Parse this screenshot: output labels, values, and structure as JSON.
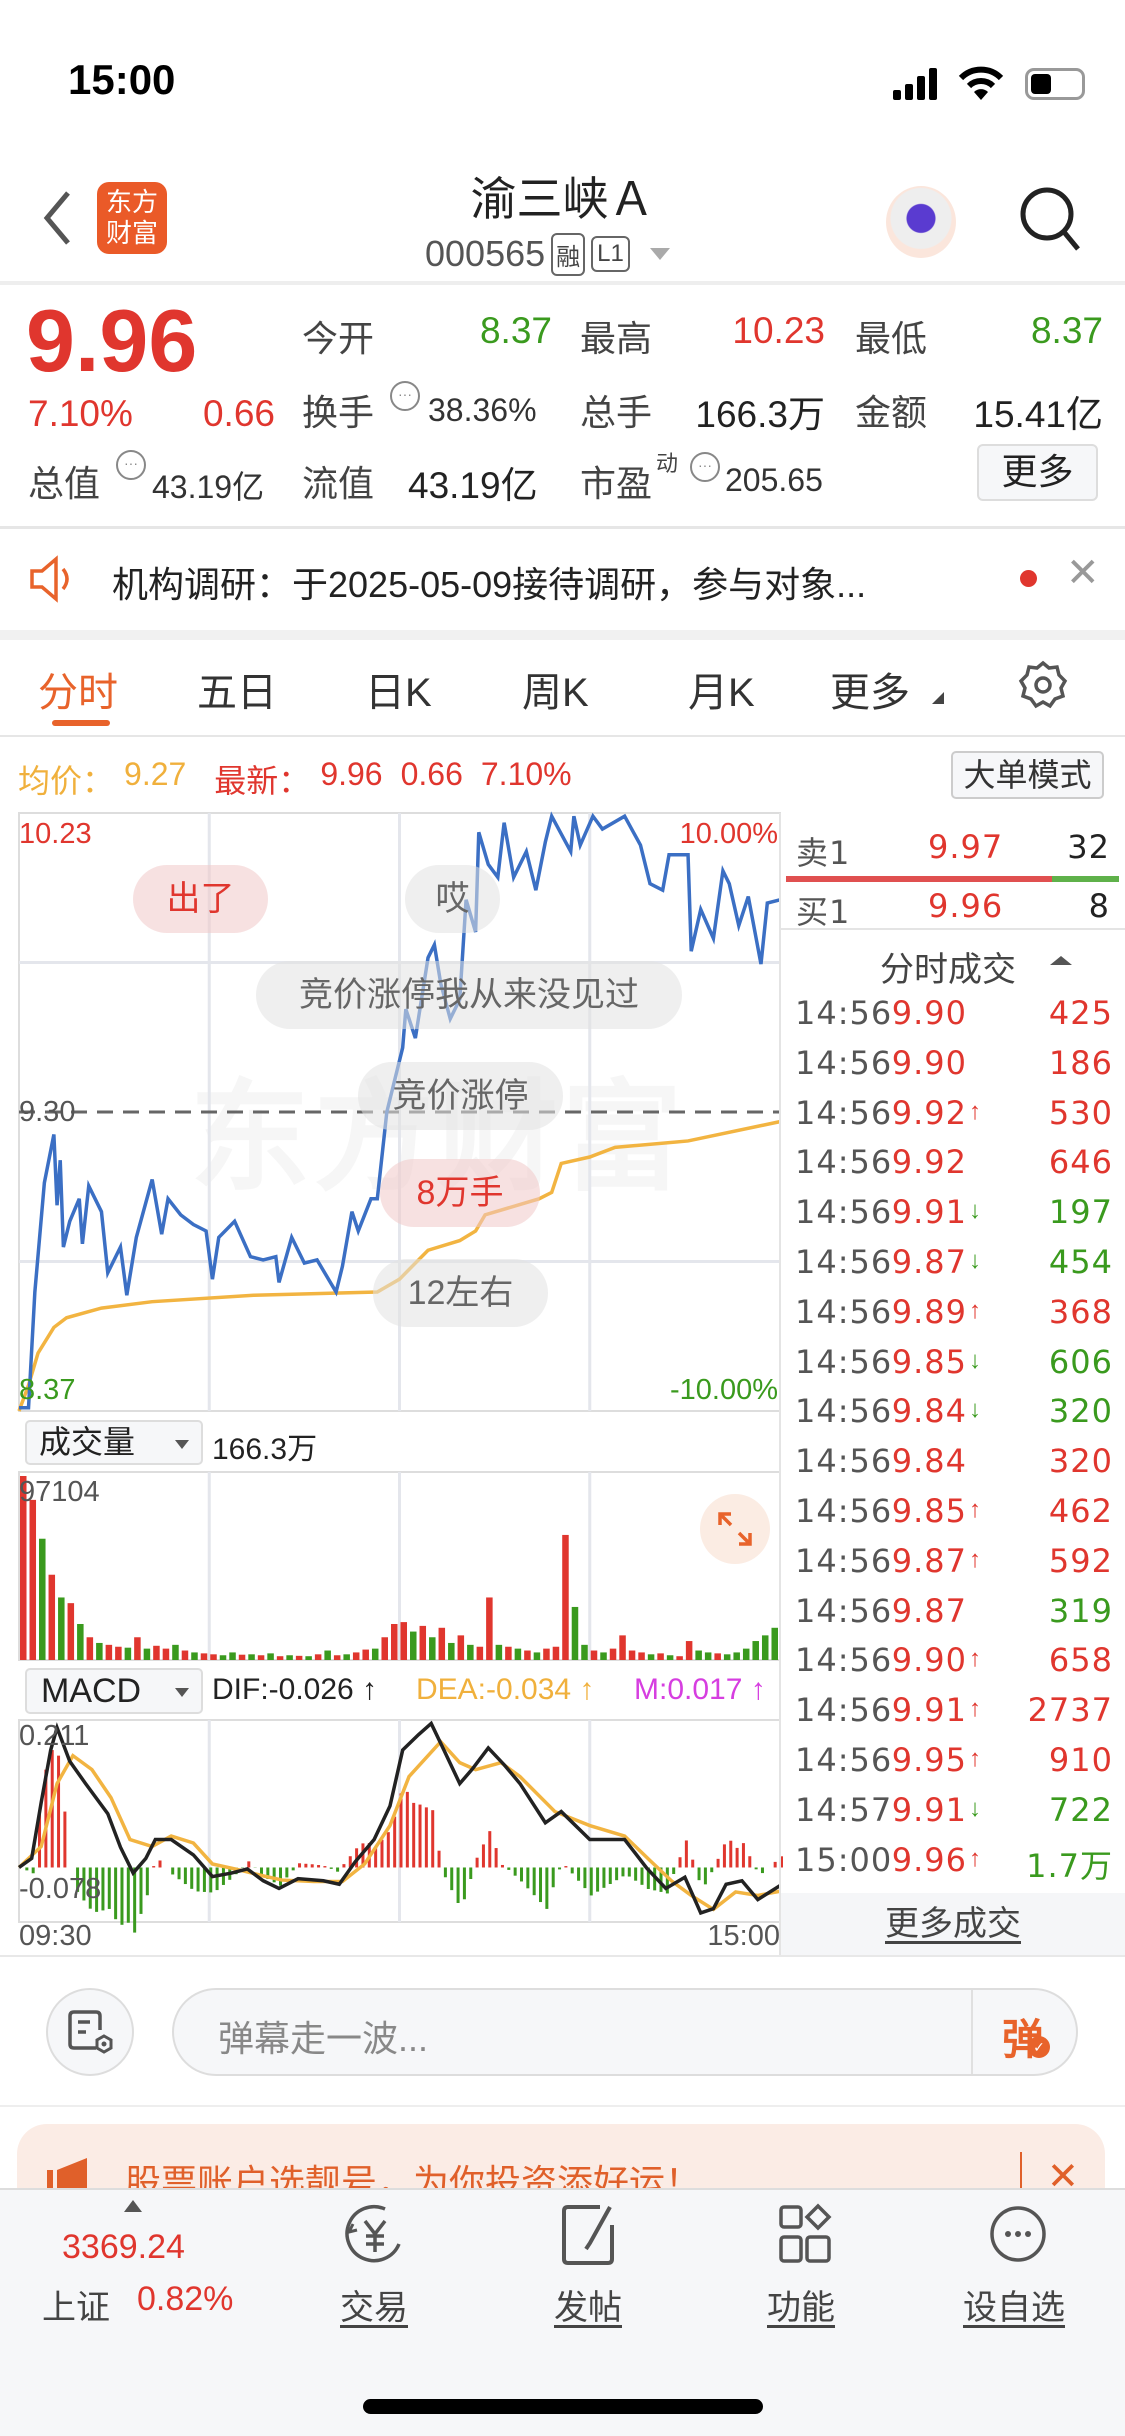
{
  "status_bar": {
    "time": "15:00"
  },
  "nav": {
    "logo_text": "东方财富",
    "title": "渝三峡Ａ",
    "code": "000565",
    "badges": [
      "融",
      "L1"
    ]
  },
  "quote": {
    "price": "9.96",
    "change_pct": "7.10%",
    "change": "0.66",
    "open_label": "今开",
    "open": "8.37",
    "high_label": "最高",
    "high": "10.23",
    "low_label": "最低",
    "low": "8.37",
    "turnover_label": "换手",
    "turnover": "38.36%",
    "volume_label": "总手",
    "volume": "166.3万",
    "amount_label": "金额",
    "amount": "15.41亿",
    "total_cap_label": "总值",
    "total_cap": "43.19亿",
    "float_cap_label": "流值",
    "float_cap": "43.19亿",
    "pe_label": "市盈",
    "pe_sup": "动",
    "pe": "205.65",
    "more_button": "更多",
    "colors": {
      "up": "#e0362e",
      "down": "#3a9a1e"
    }
  },
  "notice": {
    "text": "机构调研：于2025-05-09接待调研，参与对象..."
  },
  "tabs": {
    "items": [
      "分时",
      "五日",
      "日K",
      "周K",
      "月K",
      "更多"
    ],
    "active": 0
  },
  "chart_header": {
    "avg_label": "均价：",
    "avg": "9.27",
    "latest_label": "最新：",
    "latest": "9.96",
    "change": "0.66",
    "pct": "7.10%",
    "mode_button": "大单模式"
  },
  "main_chart": {
    "top_price": "10.23",
    "mid_price": "9.30",
    "bottom_price": "8.37",
    "top_pct": "10.00%",
    "bottom_pct": "-10.00%",
    "watermark": "东方财富"
  },
  "danmaku": [
    "出了",
    "哎",
    "竞价涨停我从来没见过",
    "竞价涨停",
    "8万手",
    "12左右"
  ],
  "volume_panel": {
    "selector": "成交量",
    "total": "166.3万",
    "max_label": "97104"
  },
  "macd_panel": {
    "selector": "MACD",
    "dif": "DIF:-0.026 ↑",
    "dea": "DEA:-0.034 ↑",
    "m": "M:0.017 ↑",
    "top_label": "0.211",
    "bottom_label": "-0.078",
    "time_start": "09:30",
    "time_end": "15:00"
  },
  "order_book": {
    "ask_label": "卖1",
    "ask_price": "9.97",
    "ask_qty": "32",
    "bid_label": "买1",
    "bid_price": "9.96",
    "bid_qty": "8",
    "ask_ratio": 0.8
  },
  "trades": {
    "title": "分时成交",
    "rows": [
      {
        "time": "14:56",
        "price": "9.90",
        "arrow": "",
        "vol": "425",
        "side": "up"
      },
      {
        "time": "14:56",
        "price": "9.90",
        "arrow": "",
        "vol": "186",
        "side": "up"
      },
      {
        "time": "14:56",
        "price": "9.92",
        "arrow": "↑",
        "vol": "530",
        "side": "up"
      },
      {
        "time": "14:56",
        "price": "9.92",
        "arrow": "",
        "vol": "646",
        "side": "up"
      },
      {
        "time": "14:56",
        "price": "9.91",
        "arrow": "↓",
        "vol": "197",
        "side": "down"
      },
      {
        "time": "14:56",
        "price": "9.87",
        "arrow": "↓",
        "vol": "454",
        "side": "down"
      },
      {
        "time": "14:56",
        "price": "9.89",
        "arrow": "↑",
        "vol": "368",
        "side": "up"
      },
      {
        "time": "14:56",
        "price": "9.85",
        "arrow": "↓",
        "vol": "606",
        "side": "down"
      },
      {
        "time": "14:56",
        "price": "9.84",
        "arrow": "↓",
        "vol": "320",
        "side": "down"
      },
      {
        "time": "14:56",
        "price": "9.84",
        "arrow": "",
        "vol": "320",
        "side": "up"
      },
      {
        "time": "14:56",
        "price": "9.85",
        "arrow": "↑",
        "vol": "462",
        "side": "up"
      },
      {
        "time": "14:56",
        "price": "9.87",
        "arrow": "↑",
        "vol": "592",
        "side": "up"
      },
      {
        "time": "14:56",
        "price": "9.87",
        "arrow": "",
        "vol": "319",
        "side": "down"
      },
      {
        "time": "14:56",
        "price": "9.90",
        "arrow": "↑",
        "vol": "658",
        "side": "up"
      },
      {
        "time": "14:56",
        "price": "9.91",
        "arrow": "↑",
        "vol": "2737",
        "side": "up"
      },
      {
        "time": "14:56",
        "price": "9.95",
        "arrow": "↑",
        "vol": "910",
        "side": "up"
      },
      {
        "time": "14:57",
        "price": "9.91",
        "arrow": "↓",
        "vol": "722",
        "side": "down"
      },
      {
        "time": "15:00",
        "price": "9.96",
        "arrow": "↑",
        "vol": "1.7万",
        "side": "down"
      }
    ],
    "more": "更多成交"
  },
  "comment": {
    "placeholder": "弹幕走一波...",
    "send_icon_text": "弹"
  },
  "ad": {
    "text": "股票账户选靓号，为你投资添好运！"
  },
  "bottom_nav": {
    "index_value": "3369.24",
    "index_name": "上证",
    "index_pct": "0.82%",
    "items": [
      "交易",
      "发帖",
      "功能",
      "设自选"
    ]
  },
  "chart_data": {
    "type": "line",
    "x_ticks": [
      "09:30",
      "15:00"
    ],
    "ylim": [
      8.37,
      10.23
    ],
    "pre_close": 9.3,
    "price": [
      [
        "09:30",
        8.38
      ],
      [
        "09:33",
        8.38
      ],
      [
        "09:35",
        8.74
      ],
      [
        "09:38",
        9.08
      ],
      [
        "09:41",
        9.23
      ],
      [
        "09:42",
        9.01
      ],
      [
        "09:43",
        9.15
      ],
      [
        "09:44",
        8.88
      ],
      [
        "09:46",
        8.96
      ],
      [
        "09:49",
        9.03
      ],
      [
        "09:50",
        8.89
      ],
      [
        "09:52",
        9.07
      ],
      [
        "09:56",
        8.99
      ],
      [
        "09:58",
        8.8
      ],
      [
        "10:02",
        8.88
      ],
      [
        "10:04",
        8.73
      ],
      [
        "10:07",
        8.91
      ],
      [
        "10:12",
        9.09
      ],
      [
        "10:15",
        8.92
      ],
      [
        "10:17",
        9.03
      ],
      [
        "10:21",
        8.98
      ],
      [
        "10:25",
        8.95
      ],
      [
        "10:29",
        8.93
      ],
      [
        "10:31",
        8.78
      ],
      [
        "10:33",
        8.91
      ],
      [
        "10:38",
        8.96
      ],
      [
        "10:43",
        8.85
      ],
      [
        "10:47",
        8.84
      ],
      [
        "10:51",
        8.85
      ],
      [
        "10:52",
        8.77
      ],
      [
        "10:56",
        8.91
      ],
      [
        "11:00",
        8.83
      ],
      [
        "11:04",
        8.84
      ],
      [
        "11:10",
        8.74
      ],
      [
        "11:12",
        8.82
      ],
      [
        "11:15",
        8.99
      ],
      [
        "11:17",
        8.93
      ],
      [
        "11:21",
        9.03
      ],
      [
        "11:23",
        9.03
      ],
      [
        "11:26",
        9.3
      ],
      [
        "13:01",
        9.5
      ],
      [
        "13:02",
        9.62
      ],
      [
        "13:05",
        9.53
      ],
      [
        "13:09",
        9.78
      ],
      [
        "13:11",
        9.82
      ],
      [
        "13:13",
        9.7
      ],
      [
        "13:16",
        9.59
      ],
      [
        "13:19",
        9.65
      ],
      [
        "13:21",
        9.96
      ],
      [
        "13:24",
        9.86
      ],
      [
        "13:25",
        10.17
      ],
      [
        "13:28",
        10.07
      ],
      [
        "13:31",
        10.03
      ],
      [
        "13:33",
        10.2
      ],
      [
        "13:36",
        10.03
      ],
      [
        "13:40",
        10.11
      ],
      [
        "13:43",
        9.99
      ],
      [
        "13:46",
        10.14
      ],
      [
        "13:48",
        10.22
      ],
      [
        "13:54",
        10.11
      ],
      [
        "13:55",
        10.22
      ],
      [
        "13:57",
        10.13
      ],
      [
        "14:01",
        10.22
      ],
      [
        "14:04",
        10.18
      ],
      [
        "14:11",
        10.22
      ],
      [
        "14:16",
        10.13
      ],
      [
        "14:19",
        10.01
      ],
      [
        "14:23",
        9.99
      ],
      [
        "14:25",
        10.1
      ],
      [
        "14:31",
        10.1
      ],
      [
        "14:32",
        9.8
      ],
      [
        "14:35",
        9.93
      ],
      [
        "14:39",
        9.84
      ],
      [
        "14:42",
        10.05
      ],
      [
        "14:44",
        10.01
      ],
      [
        "14:47",
        9.88
      ],
      [
        "14:50",
        9.97
      ],
      [
        "14:54",
        9.76
      ],
      [
        "14:56",
        9.95
      ],
      [
        "15:00",
        9.96
      ]
    ],
    "avg_price": [
      [
        "09:30",
        8.37
      ],
      [
        "09:33",
        8.45
      ],
      [
        "09:36",
        8.55
      ],
      [
        "09:41",
        8.63
      ],
      [
        "09:45",
        8.66
      ],
      [
        "09:56",
        8.69
      ],
      [
        "10:12",
        8.71
      ],
      [
        "10:44",
        8.73
      ],
      [
        "11:23",
        8.74
      ],
      [
        "13:00",
        8.78
      ],
      [
        "13:09",
        8.87
      ],
      [
        "13:19",
        8.9
      ],
      [
        "13:24",
        8.93
      ],
      [
        "13:27",
        8.98
      ],
      [
        "13:44",
        9.03
      ],
      [
        "13:48",
        9.05
      ],
      [
        "13:51",
        9.14
      ],
      [
        "14:00",
        9.16
      ],
      [
        "14:08",
        9.19
      ],
      [
        "14:31",
        9.21
      ],
      [
        "15:00",
        9.27
      ]
    ],
    "volume": {
      "ymax": 97104,
      "interval_min": 3,
      "values": [
        97104,
        84500,
        64000,
        45000,
        33000,
        30000,
        19000,
        12000,
        9000,
        8000,
        7000,
        6500,
        12000,
        6000,
        7500,
        6000,
        8000,
        5000,
        4000,
        3500,
        3000,
        2500,
        4000,
        2800,
        3000,
        2500,
        3500,
        2000,
        2500,
        2200,
        2000,
        3000,
        5000,
        2500,
        3000,
        4000,
        5500,
        6000,
        12000,
        19000,
        20000,
        15000,
        18000,
        12000,
        17000,
        9000,
        13000,
        8000,
        7000,
        33000,
        8000,
        7000,
        6000,
        5000,
        4000,
        6000,
        7000,
        66000,
        28000,
        8000,
        5000,
        4000,
        6000,
        13000,
        5000,
        4000,
        3000,
        3500,
        2500,
        2000,
        10000,
        5000,
        4000,
        3500,
        3000,
        4000,
        6000,
        10000,
        13000,
        17000
      ],
      "directions": "rrgrgrgrgrrgrgrrgrgrrggrgrgrgrgrgrgrrgrrrgrgrgrgrrgrgrgrrrggrgrrrrgrgrrggrggggggrr"
    },
    "macd": {
      "ylim": [
        -0.078,
        0.211
      ],
      "dif": [
        [
          "09:30",
          0.0
        ],
        [
          "09:34",
          0.013
        ],
        [
          "09:37",
          0.093
        ],
        [
          "09:40",
          0.168
        ],
        [
          "09:42",
          0.2
        ],
        [
          "09:46",
          0.152
        ],
        [
          "09:51",
          0.12
        ],
        [
          "09:58",
          0.077
        ],
        [
          "10:02",
          0.029
        ],
        [
          "10:06",
          -0.008
        ],
        [
          "10:10",
          0.013
        ],
        [
          "10:13",
          0.04
        ],
        [
          "10:18",
          0.04
        ],
        [
          "10:25",
          0.018
        ],
        [
          "10:31",
          -0.013
        ],
        [
          "10:37",
          -0.008
        ],
        [
          "10:42",
          -0.002
        ],
        [
          "10:47",
          -0.019
        ],
        [
          "10:52",
          -0.03
        ],
        [
          "10:58",
          -0.016
        ],
        [
          "11:06",
          -0.019
        ],
        [
          "11:11",
          -0.024
        ],
        [
          "11:16",
          0.008
        ],
        [
          "11:22",
          0.04
        ],
        [
          "11:27",
          0.088
        ],
        [
          "13:01",
          0.168
        ],
        [
          "13:06",
          0.19
        ],
        [
          "13:10",
          0.206
        ],
        [
          "13:14",
          0.168
        ],
        [
          "13:19",
          0.12
        ],
        [
          "13:23",
          0.141
        ],
        [
          "13:28",
          0.171
        ],
        [
          "13:33",
          0.147
        ],
        [
          "13:38",
          0.12
        ],
        [
          "13:46",
          0.064
        ],
        [
          "13:51",
          0.08
        ],
        [
          "14:00",
          0.04
        ],
        [
          "14:11",
          0.04
        ],
        [
          "14:18",
          -0.001
        ],
        [
          "14:24",
          -0.03
        ],
        [
          "14:30",
          -0.014
        ],
        [
          "14:35",
          -0.065
        ],
        [
          "14:39",
          -0.059
        ],
        [
          "14:43",
          -0.024
        ],
        [
          "14:48",
          -0.019
        ],
        [
          "14:53",
          -0.046
        ],
        [
          "15:00",
          -0.026
        ]
      ],
      "dea": [
        [
          "09:30",
          0.0
        ],
        [
          "09:37",
          0.03
        ],
        [
          "09:42",
          0.12
        ],
        [
          "09:47",
          0.16
        ],
        [
          "09:53",
          0.14
        ],
        [
          "09:59",
          0.1
        ],
        [
          "10:05",
          0.04
        ],
        [
          "10:12",
          0.03
        ],
        [
          "10:18",
          0.045
        ],
        [
          "10:25",
          0.035
        ],
        [
          "10:31",
          0.005
        ],
        [
          "10:39",
          -0.003
        ],
        [
          "10:47",
          -0.012
        ],
        [
          "10:53",
          -0.018
        ],
        [
          "11:03",
          -0.02
        ],
        [
          "11:12",
          -0.02
        ],
        [
          "11:19",
          0.005
        ],
        [
          "11:27",
          0.06
        ],
        [
          "13:03",
          0.13
        ],
        [
          "13:13",
          0.18
        ],
        [
          "13:19",
          0.15
        ],
        [
          "13:24",
          0.14
        ],
        [
          "13:32",
          0.15
        ],
        [
          "13:38",
          0.13
        ],
        [
          "13:49",
          0.08
        ],
        [
          "14:00",
          0.06
        ],
        [
          "14:11",
          0.045
        ],
        [
          "14:19",
          0.01
        ],
        [
          "14:26",
          -0.02
        ],
        [
          "14:32",
          -0.04
        ],
        [
          "14:39",
          -0.06
        ],
        [
          "14:46",
          -0.035
        ],
        [
          "14:53",
          -0.04
        ],
        [
          "15:00",
          -0.034
        ]
      ]
    },
    "colors": {
      "price": "#3b6fc4",
      "avg": "#f2b441",
      "up": "#e0362e",
      "down": "#3a9a1e",
      "dif": "#222222",
      "dea": "#f2b441",
      "m": "#d63ee0"
    }
  }
}
